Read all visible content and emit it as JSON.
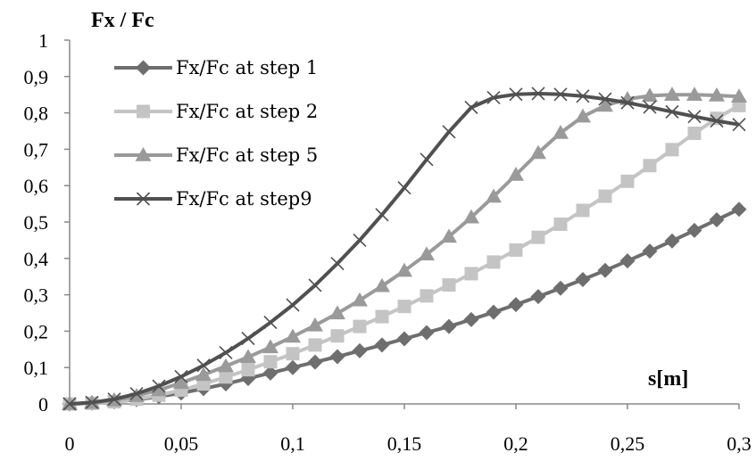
{
  "chart_data": {
    "type": "line",
    "title": "",
    "xlabel": "s[m]",
    "ylabel": "Fx / Fc",
    "xlim": [
      0,
      0.3
    ],
    "ylim": [
      0,
      1
    ],
    "x_ticks": [
      "0",
      "0,05",
      "0,1",
      "0,15",
      "0,2",
      "0,25",
      "0,3"
    ],
    "y_ticks": [
      "0",
      "0,1",
      "0,2",
      "0,3",
      "0,4",
      "0,5",
      "0,6",
      "0,7",
      "0,8",
      "0,9",
      "1"
    ],
    "grid": false,
    "legend_position": "top-left",
    "x": [
      0,
      0.01,
      0.02,
      0.03,
      0.04,
      0.05,
      0.06,
      0.07,
      0.08,
      0.09,
      0.1,
      0.11,
      0.12,
      0.13,
      0.14,
      0.15,
      0.16,
      0.17,
      0.18,
      0.19,
      0.2,
      0.21,
      0.22,
      0.23,
      0.24,
      0.25,
      0.26,
      0.27,
      0.28,
      0.29,
      0.3
    ],
    "series": [
      {
        "name": "Fx/Fc at step 1",
        "marker": "diamond",
        "line_color": "#6e6e6e",
        "marker_color": "#6e6e6e",
        "values": [
          0,
          0.002,
          0.006,
          0.012,
          0.02,
          0.03,
          0.042,
          0.055,
          0.07,
          0.085,
          0.1,
          0.115,
          0.13,
          0.146,
          0.162,
          0.179,
          0.196,
          0.213,
          0.232,
          0.252,
          0.273,
          0.295,
          0.318,
          0.342,
          0.367,
          0.393,
          0.42,
          0.448,
          0.477,
          0.506,
          0.535
        ]
      },
      {
        "name": "Fx/Fc at step 2",
        "marker": "square",
        "line_color": "#c4c4c4",
        "marker_color": "#c4c4c4",
        "values": [
          0,
          0.002,
          0.006,
          0.013,
          0.024,
          0.038,
          0.055,
          0.074,
          0.094,
          0.116,
          0.138,
          0.162,
          0.187,
          0.213,
          0.24,
          0.268,
          0.297,
          0.327,
          0.358,
          0.39,
          0.423,
          0.458,
          0.494,
          0.532,
          0.571,
          0.612,
          0.655,
          0.699,
          0.744,
          0.785,
          0.82
        ]
      },
      {
        "name": "Fx/Fc at step 5",
        "marker": "triangle",
        "line_color": "#9a9a9a",
        "marker_color": "#9a9a9a",
        "values": [
          0,
          0.003,
          0.01,
          0.022,
          0.038,
          0.058,
          0.08,
          0.104,
          0.129,
          0.156,
          0.185,
          0.216,
          0.249,
          0.285,
          0.324,
          0.366,
          0.411,
          0.46,
          0.513,
          0.57,
          0.63,
          0.69,
          0.745,
          0.79,
          0.82,
          0.838,
          0.847,
          0.85,
          0.85,
          0.848,
          0.845
        ]
      },
      {
        "name": "Fx/Fc at step9",
        "marker": "x",
        "line_color": "#505050",
        "marker_color": "#505050",
        "values": [
          0,
          0.004,
          0.013,
          0.028,
          0.049,
          0.075,
          0.106,
          0.141,
          0.18,
          0.224,
          0.272,
          0.326,
          0.386,
          0.45,
          0.52,
          0.594,
          0.672,
          0.748,
          0.815,
          0.842,
          0.851,
          0.853,
          0.851,
          0.846,
          0.838,
          0.828,
          0.816,
          0.803,
          0.79,
          0.778,
          0.768
        ]
      }
    ]
  }
}
